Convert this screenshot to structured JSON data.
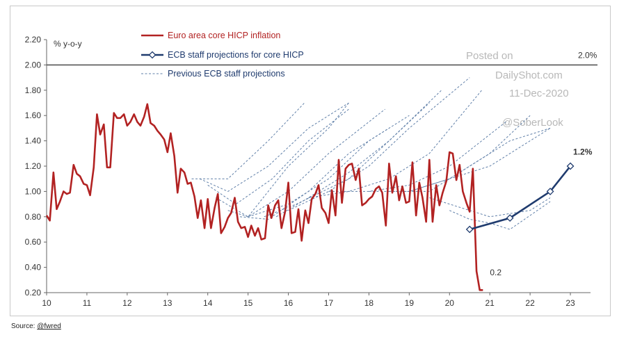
{
  "source": {
    "prefix": "Source:",
    "handle": "@fwred"
  },
  "watermark": [
    "Posted on",
    "DailyShot.com",
    "11-Dec-2020",
    "@SoberLook"
  ],
  "chart_data": {
    "type": "line",
    "ylabel": "% y-o-y",
    "ylim": [
      0.2,
      2.2
    ],
    "xlim": [
      10,
      23.5
    ],
    "yticks": [
      "0.20",
      "0.40",
      "0.60",
      "0.80",
      "1.00",
      "1.20",
      "1.40",
      "1.60",
      "1.80",
      "2.00",
      "2.20"
    ],
    "xticks": [
      "10",
      "11",
      "12",
      "13",
      "14",
      "15",
      "16",
      "17",
      "18",
      "19",
      "20",
      "21",
      "22",
      "23"
    ],
    "grid": false,
    "legend_position": "top-left",
    "colors": {
      "actual": "#b22222",
      "projection": "#1f3b6e",
      "previous": "#5f7fa8",
      "target_line": "#555555"
    },
    "target_line": {
      "y": 2.0,
      "label": "2.0%"
    },
    "annotations": {
      "actual_last": "0.2",
      "projection_last": "1.2%"
    },
    "series": [
      {
        "name": "Euro area core HICP inflation",
        "style": "solid",
        "x": [
          10.0,
          10.08,
          10.17,
          10.25,
          10.33,
          10.42,
          10.5,
          10.58,
          10.67,
          10.75,
          10.83,
          10.92,
          11.0,
          11.08,
          11.17,
          11.25,
          11.33,
          11.42,
          11.5,
          11.58,
          11.67,
          11.75,
          11.83,
          11.92,
          12.0,
          12.08,
          12.17,
          12.25,
          12.33,
          12.42,
          12.5,
          12.58,
          12.67,
          12.75,
          12.83,
          12.92,
          13.0,
          13.08,
          13.17,
          13.25,
          13.33,
          13.42,
          13.5,
          13.58,
          13.67,
          13.75,
          13.83,
          13.92,
          14.0,
          14.08,
          14.17,
          14.25,
          14.33,
          14.42,
          14.5,
          14.58,
          14.67,
          14.75,
          14.83,
          14.92,
          15.0,
          15.08,
          15.17,
          15.25,
          15.33,
          15.42,
          15.5,
          15.58,
          15.67,
          15.75,
          15.83,
          15.92,
          16.0,
          16.08,
          16.17,
          16.25,
          16.33,
          16.42,
          16.5,
          16.58,
          16.67,
          16.75,
          16.83,
          16.92,
          17.0,
          17.08,
          17.17,
          17.25,
          17.33,
          17.42,
          17.5,
          17.58,
          17.67,
          17.75,
          17.83,
          17.92,
          18.0,
          18.08,
          18.17,
          18.25,
          18.33,
          18.42,
          18.5,
          18.58,
          18.67,
          18.75,
          18.83,
          18.92,
          19.0,
          19.08,
          19.17,
          19.25,
          19.33,
          19.42,
          19.5,
          19.58,
          19.67,
          19.75,
          19.83,
          19.92,
          20.0,
          20.08,
          20.17,
          20.25,
          20.33,
          20.42,
          20.5,
          20.58,
          20.67,
          20.75,
          20.83
        ],
        "values": [
          0.81,
          0.77,
          1.15,
          0.86,
          0.92,
          1.0,
          0.98,
          0.99,
          1.21,
          1.14,
          1.12,
          1.06,
          1.05,
          0.97,
          1.19,
          1.61,
          1.45,
          1.53,
          1.19,
          1.19,
          1.62,
          1.58,
          1.58,
          1.61,
          1.52,
          1.55,
          1.61,
          1.55,
          1.52,
          1.59,
          1.69,
          1.54,
          1.52,
          1.48,
          1.45,
          1.41,
          1.31,
          1.46,
          1.28,
          0.99,
          1.18,
          1.15,
          1.06,
          1.07,
          0.96,
          0.79,
          0.93,
          0.71,
          0.94,
          0.71,
          0.87,
          0.98,
          0.67,
          0.72,
          0.79,
          0.83,
          0.95,
          0.76,
          0.71,
          0.72,
          0.64,
          0.73,
          0.65,
          0.71,
          0.62,
          0.63,
          0.89,
          0.79,
          0.89,
          0.93,
          0.71,
          0.84,
          1.07,
          0.67,
          0.68,
          0.86,
          0.61,
          0.85,
          0.75,
          0.94,
          0.98,
          1.05,
          0.87,
          0.83,
          0.75,
          1.01,
          0.81,
          1.25,
          0.91,
          1.18,
          1.21,
          1.22,
          1.09,
          1.18,
          0.89,
          0.91,
          0.94,
          0.96,
          1.02,
          1.04,
          0.99,
          0.73,
          1.22,
          0.99,
          1.12,
          0.93,
          1.04,
          0.91,
          0.92,
          1.23,
          0.81,
          1.07,
          0.95,
          0.76,
          1.25,
          0.76,
          1.05,
          0.89,
          0.99,
          1.08,
          1.31,
          1.3,
          1.09,
          1.21,
          1.0,
          0.91,
          0.84,
          1.18,
          0.37,
          0.22,
          0.22
        ]
      },
      {
        "name": "ECB staff projections for core HICP",
        "style": "solid-markers",
        "x": [
          20.5,
          21.5,
          22.5,
          23.0
        ],
        "values": [
          0.7,
          0.79,
          1.0,
          1.2
        ]
      },
      {
        "name": "Previous ECB staff projections",
        "style": "dashed",
        "lines": [
          {
            "x": [
              13.6,
              14.5,
              15.5,
              16.4
            ],
            "values": [
              1.1,
              1.1,
              1.4,
              1.7
            ]
          },
          {
            "x": [
              13.8,
              14.5,
              15.5,
              16.5,
              17.5
            ],
            "values": [
              1.1,
              1.0,
              1.2,
              1.5,
              1.7
            ]
          },
          {
            "x": [
              14.0,
              14.7,
              15.6,
              16.5,
              17.5
            ],
            "values": [
              1.05,
              0.9,
              1.1,
              1.4,
              1.65
            ]
          },
          {
            "x": [
              14.2,
              15.0,
              16.0,
              17.0,
              17.5
            ],
            "values": [
              0.95,
              0.8,
              1.2,
              1.5,
              1.7
            ]
          },
          {
            "x": [
              14.5,
              15.0,
              16.0,
              17.0,
              18.4
            ],
            "values": [
              0.85,
              0.8,
              1.0,
              1.3,
              1.65
            ]
          },
          {
            "x": [
              14.8,
              15.5,
              16.5,
              17.5,
              18.5
            ],
            "values": [
              0.8,
              0.78,
              1.0,
              1.3,
              1.5
            ]
          },
          {
            "x": [
              15.0,
              16.0,
              17.0,
              18.0,
              19.0
            ],
            "values": [
              0.8,
              0.9,
              1.1,
              1.4,
              1.6
            ]
          },
          {
            "x": [
              15.4,
              16.2,
              17.5,
              18.5,
              19.5
            ],
            "values": [
              0.8,
              0.9,
              1.1,
              1.4,
              1.7
            ]
          },
          {
            "x": [
              15.7,
              16.5,
              17.5,
              18.5,
              19.8
            ],
            "values": [
              0.8,
              0.95,
              1.15,
              1.4,
              1.8
            ]
          },
          {
            "x": [
              16.0,
              17.0,
              18.0,
              19.0,
              20.5
            ],
            "values": [
              0.85,
              1.0,
              1.2,
              1.5,
              1.9
            ]
          },
          {
            "x": [
              16.5,
              17.5,
              18.5,
              19.5,
              20.8
            ],
            "values": [
              0.95,
              1.0,
              1.1,
              1.3,
              1.8
            ]
          },
          {
            "x": [
              17.0,
              18.0,
              19.0,
              20.0,
              21.4
            ],
            "values": [
              1.0,
              1.0,
              1.05,
              1.2,
              1.55
            ]
          },
          {
            "x": [
              18.0,
              19.0,
              20.0,
              21.0,
              22.0
            ],
            "values": [
              1.0,
              1.0,
              1.1,
              1.3,
              1.6
            ]
          },
          {
            "x": [
              18.5,
              19.5,
              20.5,
              21.5,
              22.5
            ],
            "values": [
              1.0,
              1.0,
              1.2,
              1.4,
              1.5
            ]
          },
          {
            "x": [
              19.0,
              19.5,
              20.0,
              21.0,
              22.0,
              22.5
            ],
            "values": [
              1.0,
              1.05,
              1.1,
              1.2,
              1.4,
              1.5
            ]
          },
          {
            "x": [
              19.5,
              20.0,
              20.5,
              21.0,
              22.0,
              22.5
            ],
            "values": [
              0.95,
              0.9,
              0.85,
              0.8,
              0.85,
              0.95
            ]
          },
          {
            "x": [
              20.0,
              20.5,
              21.0,
              21.5,
              22.5
            ],
            "values": [
              0.85,
              0.78,
              0.75,
              0.7,
              0.92
            ]
          }
        ]
      }
    ]
  }
}
